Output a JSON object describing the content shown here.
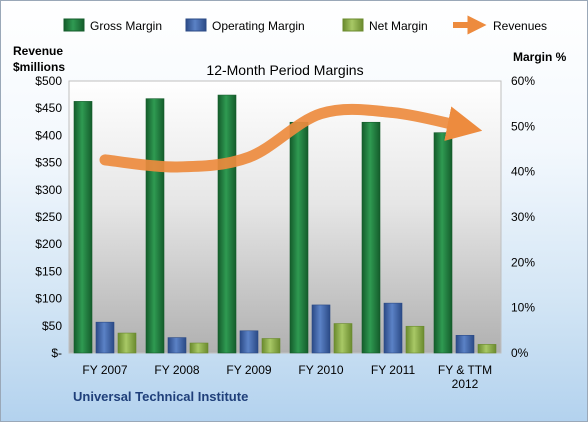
{
  "chart_data": {
    "type": "bar",
    "title": "12-Month Period Margins",
    "ylabel_left": [
      "Revenue",
      "$millions"
    ],
    "ylabel_right": "Margin %",
    "categories": [
      "FY 2007",
      "FY 2008",
      "FY 2009",
      "FY 2010",
      "FY 2011",
      "FY & TTM 2012"
    ],
    "left_axis": {
      "min": 0,
      "max": 500,
      "step": 50,
      "tick_labels": [
        "$-",
        "$50",
        "$100",
        "$150",
        "$200",
        "$250",
        "$300",
        "$350",
        "$400",
        "$450",
        "$500"
      ]
    },
    "right_axis": {
      "min": 0,
      "max": 60,
      "step": 10,
      "tick_labels": [
        "0%",
        "10%",
        "20%",
        "30%",
        "40%",
        "50%",
        "60%"
      ]
    },
    "series": [
      {
        "name": "Gross Margin",
        "axis": "right",
        "values": [
          55.5,
          56.1,
          56.9,
          50.9,
          50.9,
          48.6
        ],
        "color": "#1f7a3c"
      },
      {
        "name": "Operating Margin",
        "axis": "right",
        "values": [
          6.8,
          3.4,
          4.9,
          10.6,
          11.0,
          3.9
        ],
        "color": "#3d63a8"
      },
      {
        "name": "Net Margin",
        "axis": "right",
        "values": [
          4.4,
          2.2,
          3.2,
          6.5,
          5.9,
          1.9
        ],
        "color": "#8aac45"
      },
      {
        "name": "Revenues",
        "axis": "left",
        "type": "line",
        "values": [
          355,
          342,
          360,
          440,
          442,
          415
        ],
        "color": "#ed8b3e"
      }
    ],
    "legend_position": "top",
    "grid": false
  },
  "footer": {
    "company": "Universal Technical Institute"
  }
}
